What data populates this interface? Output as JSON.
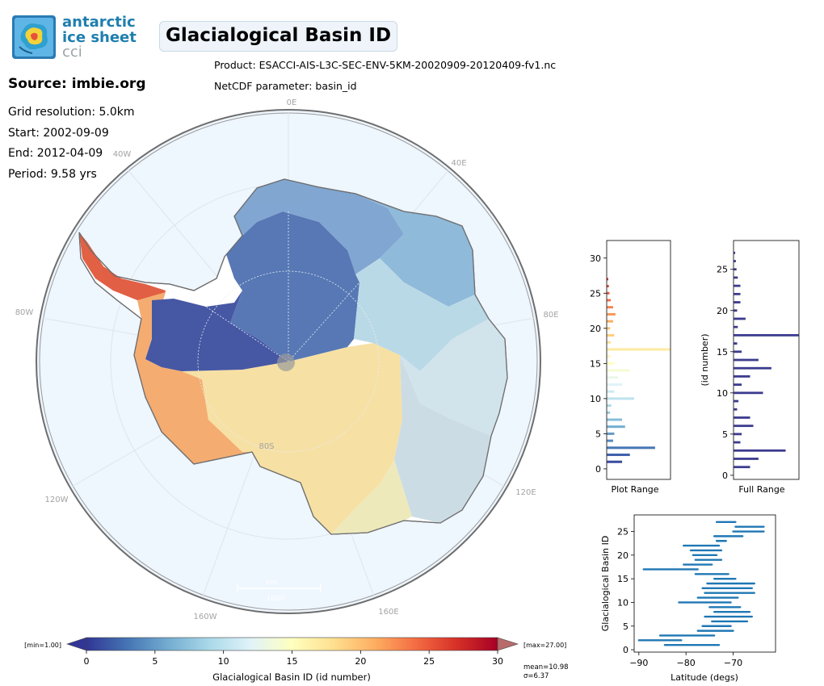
{
  "logo": {
    "line1": "antarctic",
    "line2": "ice sheet",
    "line3": "cci"
  },
  "title": "Glacialogical Basin ID",
  "product": "Product: ESACCI-AIS-L3C-SEC-ENV-5KM-20020909-20120409-fv1.nc",
  "netcdf": "NetCDF parameter: basin_id",
  "source": "Source: imbie.org",
  "grid": "Grid resolution: 5.0km",
  "start": "Start: 2002-09-09",
  "end": "End: 2012-04-09",
  "period": "Period: 9.58 yrs",
  "map": {
    "meridian_labels": [
      "0E",
      "40E",
      "80E",
      "120E",
      "160E",
      "160W",
      "120W",
      "80W",
      "40W"
    ],
    "parallel_labels": [
      "80S"
    ],
    "scale_label": "km",
    "scale_value": "1000",
    "colors": {
      "ocean": "#eef6fe",
      "coast": "#6e6e6e",
      "grid": "#d6dde3"
    }
  },
  "colorbar": {
    "label": "Glacialogical Basin ID (id number)",
    "ticks": [
      "0",
      "5",
      "10",
      "15",
      "20",
      "25",
      "30"
    ],
    "min_label": "[min=1.00]",
    "max_label": "[max=27.00]",
    "mean": "mean=10.98",
    "sigma": "σ=6.37",
    "colormap": "RdYlBu_r"
  },
  "hist_plot": {
    "title": "Plot Range",
    "yticks": [
      "0",
      "5",
      "10",
      "15",
      "20",
      "25",
      "30"
    ]
  },
  "hist_full": {
    "title": "Full Range",
    "ylabel": "(id number)",
    "yticks": [
      "0",
      "5",
      "10",
      "15",
      "20",
      "25"
    ]
  },
  "lat_plot": {
    "xlabel": "Latitude (degs)",
    "ylabel": "Glacialogical Basin ID",
    "xticks": [
      "−90",
      "−80",
      "−70"
    ],
    "yticks": [
      "0",
      "5",
      "10",
      "15",
      "20",
      "25"
    ]
  },
  "chart_data": [
    {
      "type": "bar",
      "orientation": "horizontal",
      "title": "Plot Range",
      "ylim": [
        -1.5,
        32.5
      ],
      "categories": [
        1,
        2,
        3,
        4,
        5,
        6,
        7,
        8,
        9,
        10,
        11,
        12,
        13,
        14,
        15,
        16,
        17,
        18,
        19,
        20,
        21,
        22,
        23,
        24,
        25,
        26,
        27
      ],
      "values": [
        0.25,
        0.38,
        0.8,
        0.1,
        0.12,
        0.3,
        0.25,
        0.05,
        0.07,
        0.45,
        0.12,
        0.25,
        0.18,
        0.38,
        0.12,
        0.05,
        1.05,
        0.06,
        0.12,
        0.05,
        0.1,
        0.14,
        0.1,
        0.06,
        0.04,
        0.03,
        0.02
      ]
    },
    {
      "type": "bar",
      "orientation": "horizontal",
      "title": "Full Range",
      "ylabel": "(id number)",
      "ylim": [
        -0.5,
        28.5
      ],
      "categories": [
        1,
        2,
        3,
        4,
        5,
        6,
        7,
        8,
        9,
        10,
        11,
        12,
        13,
        14,
        15,
        16,
        17,
        18,
        19,
        20,
        21,
        22,
        23,
        24,
        25,
        26,
        27
      ],
      "values": [
        0.25,
        0.38,
        0.8,
        0.1,
        0.12,
        0.3,
        0.25,
        0.05,
        0.07,
        0.45,
        0.12,
        0.25,
        0.58,
        0.38,
        0.12,
        0.05,
        1.0,
        0.06,
        0.18,
        0.05,
        0.1,
        0.1,
        0.1,
        0.06,
        0.04,
        0.03,
        0.02
      ]
    },
    {
      "type": "range",
      "xlabel": "Latitude (degs)",
      "ylabel": "Glacialogical Basin ID",
      "xlim": [
        -91,
        -61
      ],
      "ylim": [
        -0.5,
        28.5
      ],
      "series": [
        {
          "id": 1,
          "min": -84.5,
          "max": -73
        },
        {
          "id": 2,
          "min": -90,
          "max": -81
        },
        {
          "id": 3,
          "min": -85.5,
          "max": -74
        },
        {
          "id": 4,
          "min": -77.5,
          "max": -70
        },
        {
          "id": 5,
          "min": -76.5,
          "max": -70.5
        },
        {
          "id": 6,
          "min": -74.5,
          "max": -67
        },
        {
          "id": 7,
          "min": -76,
          "max": -66
        },
        {
          "id": 8,
          "min": -74,
          "max": -66.5
        },
        {
          "id": 9,
          "min": -75,
          "max": -68.5
        },
        {
          "id": 10,
          "min": -81.5,
          "max": -70.5
        },
        {
          "id": 11,
          "min": -77.5,
          "max": -69
        },
        {
          "id": 12,
          "min": -76,
          "max": -65.5
        },
        {
          "id": 13,
          "min": -76.5,
          "max": -66
        },
        {
          "id": 14,
          "min": -75.5,
          "max": -65.5
        },
        {
          "id": 15,
          "min": -74,
          "max": -69.5
        },
        {
          "id": 16,
          "min": -78,
          "max": -71
        },
        {
          "id": 17,
          "min": -89,
          "max": -77.5
        },
        {
          "id": 18,
          "min": -80.5,
          "max": -74.5
        },
        {
          "id": 19,
          "min": -78,
          "max": -72.5
        },
        {
          "id": 20,
          "min": -78.5,
          "max": -73.5
        },
        {
          "id": 21,
          "min": -79,
          "max": -72.5
        },
        {
          "id": 22,
          "min": -80.5,
          "max": -73
        },
        {
          "id": 23,
          "min": -73.5,
          "max": -71.5
        },
        {
          "id": 24,
          "min": -74,
          "max": -68
        },
        {
          "id": 25,
          "min": -70,
          "max": -63.5
        },
        {
          "id": 26,
          "min": -69.5,
          "max": -63.5
        },
        {
          "id": 27,
          "min": -73.5,
          "max": -69.5
        }
      ]
    }
  ]
}
